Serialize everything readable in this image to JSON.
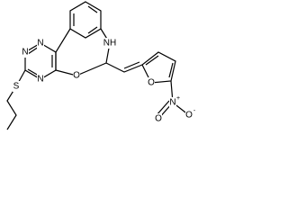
{
  "atoms": [
    {
      "label": "NH"
    },
    {
      "label": "N"
    },
    {
      "label": "N"
    },
    {
      "label": "N"
    },
    {
      "label": "O"
    },
    {
      "label": "S"
    },
    {
      "label": "O"
    },
    {
      "label": "N",
      "charge": "+"
    },
    {
      "label": "O"
    },
    {
      "label": "O",
      "charge": "-"
    }
  ]
}
